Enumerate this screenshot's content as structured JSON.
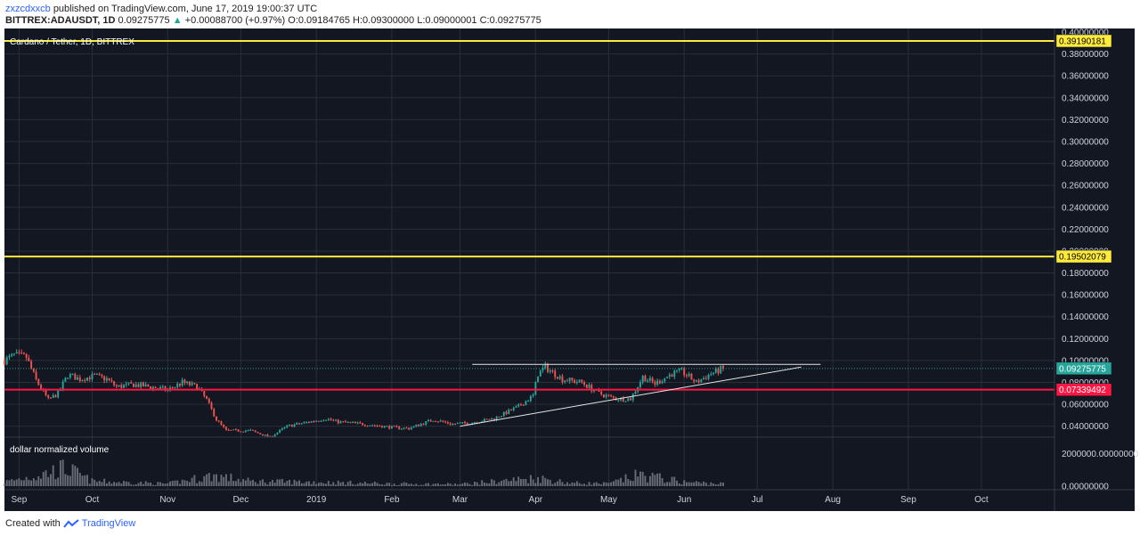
{
  "header": {
    "author": "zxzcdxxcb",
    "published": "published on TradingView.com, June 17, 2019 19:00:37 UTC"
  },
  "symbol_line": {
    "symbol": "BITTREX:ADAUSDT, 1D",
    "last": "0.09275775",
    "change": "+0.00088700 (+0.97%)",
    "ohlc": "O:0.09184765 H:0.09300000 L:0.09000001 C:0.09275775",
    "up_color": "#26a69a"
  },
  "footer": {
    "created_with": "Created with",
    "brand": "TradingView"
  },
  "chart_data": {
    "type": "candlestick",
    "title": "Cardano / Tether, 1D, BITTREX",
    "volume_label": "dollar normalized volume",
    "background": "#131722",
    "price_axis": {
      "ylim": [
        0.03,
        0.4
      ],
      "ticks": [
        {
          "v": 0.04,
          "label": "0.04000000"
        },
        {
          "v": 0.06,
          "label": "0.06000000"
        },
        {
          "v": 0.08,
          "label": "0.08000000"
        },
        {
          "v": 0.1,
          "label": "0.10000000"
        },
        {
          "v": 0.12,
          "label": "0.12000000"
        },
        {
          "v": 0.14,
          "label": "0.14000000"
        },
        {
          "v": 0.16,
          "label": "0.16000000"
        },
        {
          "v": 0.18,
          "label": "0.18000000"
        },
        {
          "v": 0.2,
          "label": "0.20000000"
        },
        {
          "v": 0.22,
          "label": "0.22000000"
        },
        {
          "v": 0.24,
          "label": "0.24000000"
        },
        {
          "v": 0.26,
          "label": "0.26000000"
        },
        {
          "v": 0.28,
          "label": "0.28000000"
        },
        {
          "v": 0.3,
          "label": "0.30000000"
        },
        {
          "v": 0.32,
          "label": "0.32000000"
        },
        {
          "v": 0.34,
          "label": "0.34000000"
        },
        {
          "v": 0.36,
          "label": "0.36000000"
        },
        {
          "v": 0.38,
          "label": "0.38000000"
        },
        {
          "v": 0.4,
          "label": "0.40000000"
        }
      ]
    },
    "volume_axis": {
      "ylim": [
        0,
        2400000
      ],
      "ticks": [
        {
          "v": 0,
          "label": "0.00000000"
        },
        {
          "v": 2000000,
          "label": "2000000.00000000"
        }
      ]
    },
    "time_axis": {
      "xlim": [
        "2018-08-26",
        "2019-10-31"
      ],
      "labels": [
        {
          "date": "2018-09-01",
          "label": "Sep"
        },
        {
          "date": "2018-10-01",
          "label": "Oct"
        },
        {
          "date": "2018-11-01",
          "label": "Nov"
        },
        {
          "date": "2018-12-01",
          "label": "Dec"
        },
        {
          "date": "2019-01-01",
          "label": "2019"
        },
        {
          "date": "2019-02-01",
          "label": "Feb"
        },
        {
          "date": "2019-03-01",
          "label": "Mar"
        },
        {
          "date": "2019-04-01",
          "label": "Apr"
        },
        {
          "date": "2019-05-01",
          "label": "May"
        },
        {
          "date": "2019-06-01",
          "label": "Jun"
        },
        {
          "date": "2019-07-01",
          "label": "Jul"
        },
        {
          "date": "2019-08-01",
          "label": "Aug"
        },
        {
          "date": "2019-09-01",
          "label": "Sep"
        },
        {
          "date": "2019-10-01",
          "label": "Oct"
        }
      ]
    },
    "price_path": [
      {
        "date": "2018-08-26",
        "price": 0.1
      },
      {
        "date": "2018-08-30",
        "price": 0.105
      },
      {
        "date": "2018-09-04",
        "price": 0.103
      },
      {
        "date": "2018-09-08",
        "price": 0.082
      },
      {
        "date": "2018-09-13",
        "price": 0.064
      },
      {
        "date": "2018-09-17",
        "price": 0.07
      },
      {
        "date": "2018-09-21",
        "price": 0.087
      },
      {
        "date": "2018-09-26",
        "price": 0.083
      },
      {
        "date": "2018-10-02",
        "price": 0.086
      },
      {
        "date": "2018-10-07",
        "price": 0.083
      },
      {
        "date": "2018-10-11",
        "price": 0.076
      },
      {
        "date": "2018-10-18",
        "price": 0.078
      },
      {
        "date": "2018-10-25",
        "price": 0.076
      },
      {
        "date": "2018-11-01",
        "price": 0.073
      },
      {
        "date": "2018-11-07",
        "price": 0.08
      },
      {
        "date": "2018-11-13",
        "price": 0.076
      },
      {
        "date": "2018-11-17",
        "price": 0.064
      },
      {
        "date": "2018-11-21",
        "price": 0.046
      },
      {
        "date": "2018-11-25",
        "price": 0.036
      },
      {
        "date": "2018-12-05",
        "price": 0.036
      },
      {
        "date": "2018-12-13",
        "price": 0.03
      },
      {
        "date": "2018-12-20",
        "price": 0.04
      },
      {
        "date": "2018-12-27",
        "price": 0.043
      },
      {
        "date": "2019-01-05",
        "price": 0.047
      },
      {
        "date": "2019-01-10",
        "price": 0.044
      },
      {
        "date": "2019-01-20",
        "price": 0.042
      },
      {
        "date": "2019-02-01",
        "price": 0.039
      },
      {
        "date": "2019-02-08",
        "price": 0.038
      },
      {
        "date": "2019-02-18",
        "price": 0.046
      },
      {
        "date": "2019-02-26",
        "price": 0.042
      },
      {
        "date": "2019-03-05",
        "price": 0.043
      },
      {
        "date": "2019-03-15",
        "price": 0.047
      },
      {
        "date": "2019-03-25",
        "price": 0.058
      },
      {
        "date": "2019-03-31",
        "price": 0.068
      },
      {
        "date": "2019-04-02",
        "price": 0.088
      },
      {
        "date": "2019-04-05",
        "price": 0.094
      },
      {
        "date": "2019-04-12",
        "price": 0.083
      },
      {
        "date": "2019-04-20",
        "price": 0.08
      },
      {
        "date": "2019-04-27",
        "price": 0.07
      },
      {
        "date": "2019-05-04",
        "price": 0.065
      },
      {
        "date": "2019-05-10",
        "price": 0.065
      },
      {
        "date": "2019-05-15",
        "price": 0.085
      },
      {
        "date": "2019-05-20",
        "price": 0.079
      },
      {
        "date": "2019-05-27",
        "price": 0.088
      },
      {
        "date": "2019-05-31",
        "price": 0.09
      },
      {
        "date": "2019-06-06",
        "price": 0.08
      },
      {
        "date": "2019-06-12",
        "price": 0.088
      },
      {
        "date": "2019-06-17",
        "price": 0.0928
      }
    ],
    "volume_path": [
      {
        "date": "2018-08-26",
        "v": 250000
      },
      {
        "date": "2018-09-10",
        "v": 700000
      },
      {
        "date": "2018-09-20",
        "v": 1100000
      },
      {
        "date": "2018-10-01",
        "v": 300000
      },
      {
        "date": "2018-11-01",
        "v": 150000
      },
      {
        "date": "2018-11-20",
        "v": 650000
      },
      {
        "date": "2018-12-05",
        "v": 300000
      },
      {
        "date": "2019-01-01",
        "v": 250000
      },
      {
        "date": "2019-02-01",
        "v": 150000
      },
      {
        "date": "2019-03-01",
        "v": 120000
      },
      {
        "date": "2019-04-02",
        "v": 500000
      },
      {
        "date": "2019-04-15",
        "v": 200000
      },
      {
        "date": "2019-05-01",
        "v": 150000
      },
      {
        "date": "2019-05-14",
        "v": 700000
      },
      {
        "date": "2019-06-01",
        "v": 250000
      },
      {
        "date": "2019-06-17",
        "v": 150000
      }
    ],
    "horizontal_lines": [
      {
        "price": 0.39190181,
        "label": "0.39190181",
        "color": "#ffeb3b"
      },
      {
        "price": 0.19502079,
        "label": "0.19502079",
        "color": "#ffeb3b"
      },
      {
        "price": 0.07339492,
        "label": "0.07339492",
        "color": "#ff1744"
      }
    ],
    "last_price": {
      "price": 0.09275775,
      "label": "0.09275775",
      "color": "#26a69a"
    },
    "trendlines": [
      {
        "from": {
          "date": "2019-03-01",
          "price": 0.04
        },
        "to": {
          "date": "2019-07-19",
          "price": 0.094
        },
        "color": "#e6e6e6"
      },
      {
        "from": {
          "date": "2019-03-06",
          "price": 0.0965
        },
        "to": {
          "date": "2019-07-27",
          "price": 0.0965
        },
        "color": "#e6e6e6"
      }
    ],
    "colors": {
      "up": "#26a69a",
      "down": "#ef5350",
      "volume": "#787b86",
      "grid": "#2a2e39"
    }
  }
}
